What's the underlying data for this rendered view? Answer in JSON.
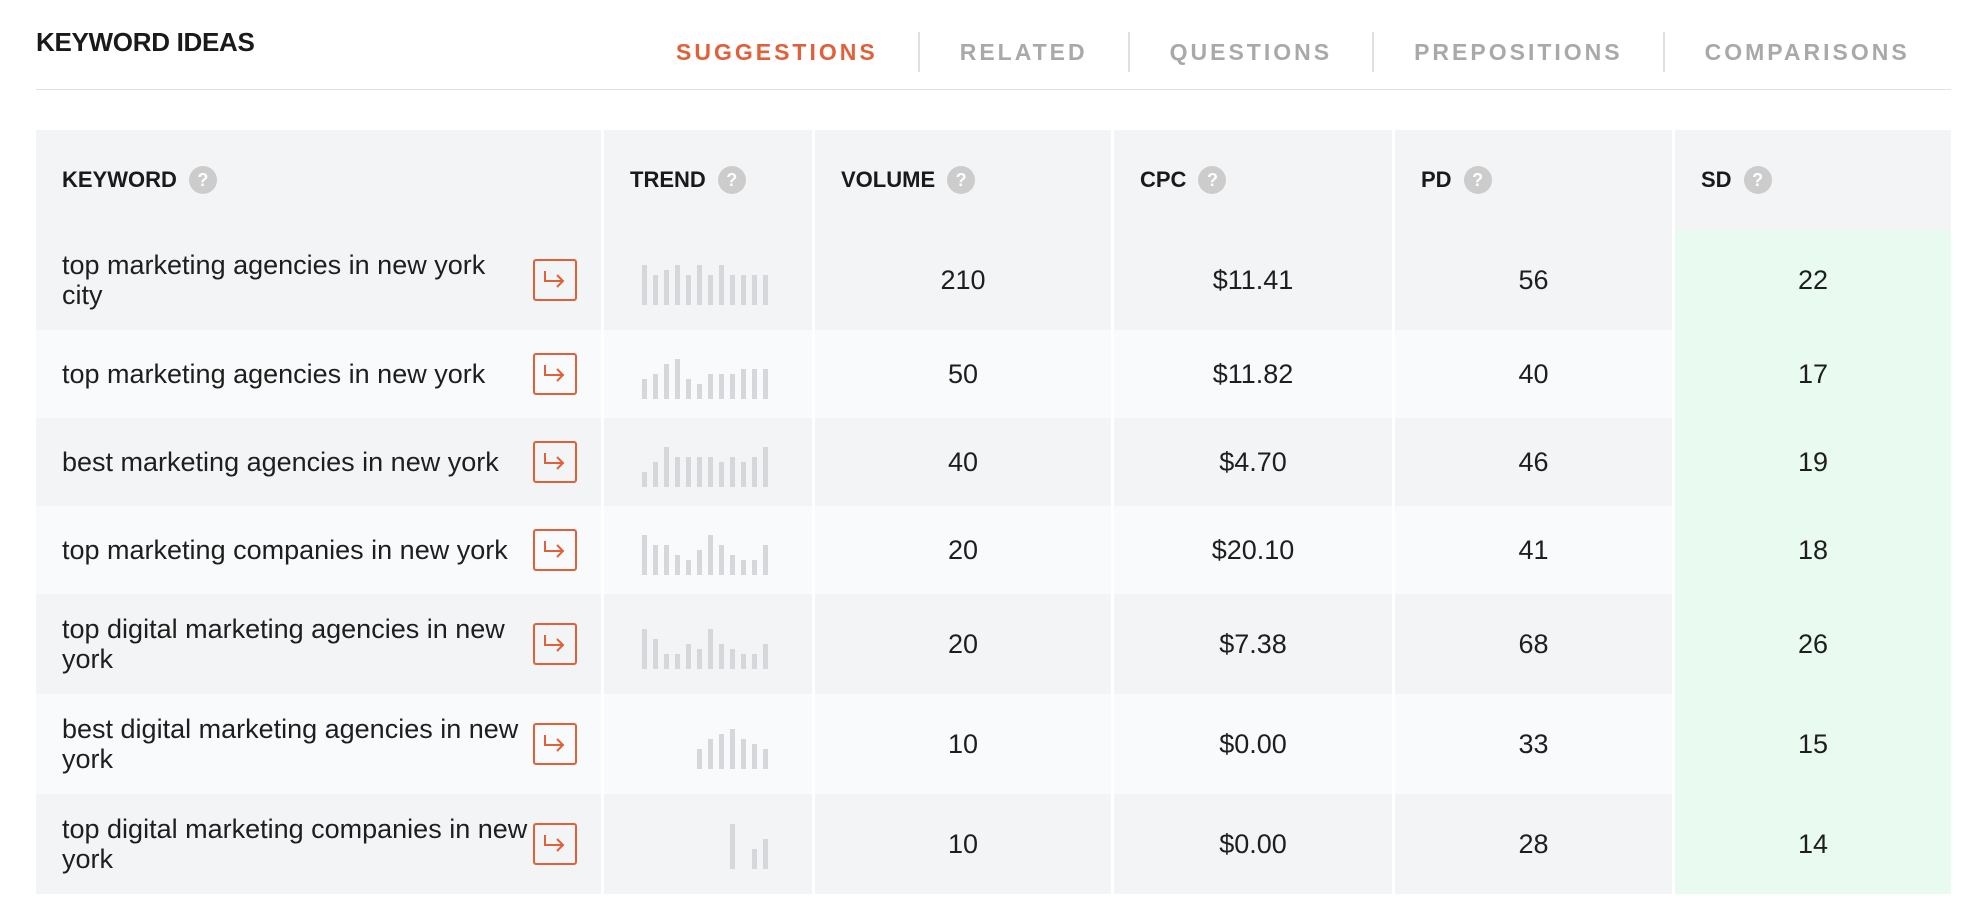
{
  "title": "KEYWORD IDEAS",
  "tabs": [
    {
      "label": "SUGGESTIONS",
      "active": true
    },
    {
      "label": "RELATED",
      "active": false
    },
    {
      "label": "QUESTIONS",
      "active": false
    },
    {
      "label": "PREPOSITIONS",
      "active": false
    },
    {
      "label": "COMPARISONS",
      "active": false
    }
  ],
  "columns": {
    "keyword": "KEYWORD",
    "trend": "TREND",
    "volume": "VOLUME",
    "cpc": "CPC",
    "pd": "PD",
    "sd": "SD",
    "help_glyph": "?"
  },
  "colors": {
    "accent": "#e0603a",
    "sd_highlight": "#e9fbf1",
    "trend_bar": "#d6d7da"
  },
  "rows": [
    {
      "keyword": "top marketing agencies in new york city",
      "volume": "210",
      "cpc": "$11.41",
      "pd": "56",
      "sd": "22",
      "trend": [
        0.8,
        0.6,
        0.7,
        0.8,
        0.6,
        0.8,
        0.6,
        0.8,
        0.6,
        0.6,
        0.6,
        0.6
      ]
    },
    {
      "keyword": "top marketing agencies in new york",
      "volume": "50",
      "cpc": "$11.82",
      "pd": "40",
      "sd": "17",
      "trend": [
        0.4,
        0.5,
        0.7,
        0.8,
        0.4,
        0.3,
        0.5,
        0.5,
        0.5,
        0.6,
        0.6,
        0.6
      ]
    },
    {
      "keyword": "best marketing agencies in new york",
      "volume": "40",
      "cpc": "$4.70",
      "pd": "46",
      "sd": "19",
      "trend": [
        0.3,
        0.5,
        0.8,
        0.6,
        0.6,
        0.6,
        0.6,
        0.5,
        0.6,
        0.5,
        0.6,
        0.8
      ]
    },
    {
      "keyword": "top marketing companies in new york",
      "volume": "20",
      "cpc": "$20.10",
      "pd": "41",
      "sd": "18",
      "trend": [
        0.8,
        0.6,
        0.6,
        0.4,
        0.3,
        0.5,
        0.8,
        0.6,
        0.4,
        0.3,
        0.3,
        0.6
      ]
    },
    {
      "keyword": "top digital marketing agencies in new york",
      "volume": "20",
      "cpc": "$7.38",
      "pd": "68",
      "sd": "26",
      "trend": [
        0.8,
        0.6,
        0.3,
        0.3,
        0.5,
        0.4,
        0.8,
        0.5,
        0.4,
        0.3,
        0.3,
        0.5
      ]
    },
    {
      "keyword": "best digital marketing agencies in new york",
      "volume": "10",
      "cpc": "$0.00",
      "pd": "33",
      "sd": "15",
      "trend": [
        0,
        0,
        0,
        0,
        0,
        0.4,
        0.6,
        0.7,
        0.8,
        0.6,
        0.5,
        0.4
      ]
    },
    {
      "keyword": "top digital marketing companies in new york",
      "volume": "10",
      "cpc": "$0.00",
      "pd": "28",
      "sd": "14",
      "trend": [
        0,
        0,
        0,
        0,
        0,
        0,
        0,
        0,
        0.9,
        0,
        0.4,
        0.6
      ]
    }
  ]
}
